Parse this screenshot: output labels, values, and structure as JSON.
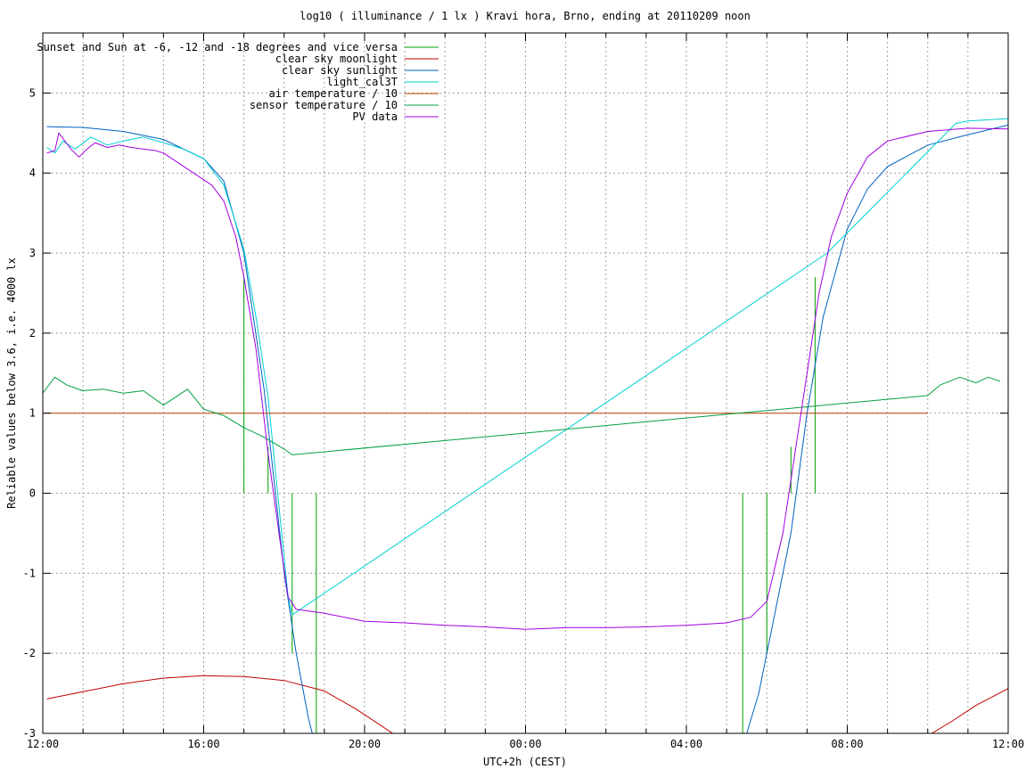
{
  "chart_data": {
    "type": "line",
    "title": "log10 ( illuminance / 1 lx ) Kravi hora, Brno, ending at 20110209 noon",
    "xlabel": "UTC+2h (CEST)",
    "ylabel": "Reliable values below 3.6, i.e. 4000 lx",
    "xlim": [
      12,
      36
    ],
    "ylim": [
      -3,
      5.75
    ],
    "x_ticks": [
      {
        "value": 12,
        "label": "12:00"
      },
      {
        "value": 16,
        "label": "16:00"
      },
      {
        "value": 20,
        "label": "20:00"
      },
      {
        "value": 24,
        "label": "00:00"
      },
      {
        "value": 28,
        "label": "04:00"
      },
      {
        "value": 32,
        "label": "08:00"
      },
      {
        "value": 36,
        "label": "12:00"
      }
    ],
    "y_ticks": [
      -3,
      -2,
      -1,
      0,
      1,
      2,
      3,
      4,
      5
    ],
    "grid": true,
    "legend_position": "top-left",
    "series": [
      {
        "name": "Sunset and Sun at -6, -12 and -18 degrees and vice versa",
        "color": "#00a000",
        "style": "impulses",
        "points": [
          [
            17.0,
            2.7
          ],
          [
            17.6,
            0.58
          ],
          [
            18.2,
            -2.0
          ],
          [
            18.8,
            -3.0
          ],
          [
            29.4,
            -3.0
          ],
          [
            30.0,
            -2.0
          ],
          [
            30.6,
            0.58
          ],
          [
            31.2,
            2.7
          ]
        ]
      },
      {
        "name": "clear sky moonlight",
        "color": "#c00000",
        "style": "line",
        "points": [
          [
            12.1,
            -2.57
          ],
          [
            13,
            -2.48
          ],
          [
            14,
            -2.38
          ],
          [
            15,
            -2.31
          ],
          [
            16,
            -2.28
          ],
          [
            17,
            -2.29
          ],
          [
            18,
            -2.34
          ],
          [
            19,
            -2.47
          ],
          [
            19.8,
            -2.7
          ],
          [
            20.7,
            -3.0
          ],
          [
            34.1,
            -3.0
          ],
          [
            34.6,
            -2.85
          ],
          [
            35.2,
            -2.65
          ],
          [
            36,
            -2.44
          ]
        ]
      },
      {
        "name": "clear sky sunlight",
        "color": "#0060c0",
        "style": "line",
        "points": [
          [
            12.1,
            4.58
          ],
          [
            13,
            4.57
          ],
          [
            14,
            4.52
          ],
          [
            15,
            4.42
          ],
          [
            16,
            4.18
          ],
          [
            16.5,
            3.9
          ],
          [
            17,
            3.0
          ],
          [
            17.5,
            1.3
          ],
          [
            18.0,
            -1.0
          ],
          [
            18.3,
            -2.0
          ],
          [
            18.6,
            -2.8
          ],
          [
            18.7,
            -3.0
          ],
          [
            29.5,
            -3.0
          ],
          [
            29.8,
            -2.5
          ],
          [
            30.2,
            -1.5
          ],
          [
            30.6,
            -0.5
          ],
          [
            31.0,
            1.0
          ],
          [
            31.4,
            2.2
          ],
          [
            32.0,
            3.3
          ],
          [
            32.5,
            3.8
          ],
          [
            33,
            4.08
          ],
          [
            34,
            4.35
          ],
          [
            35,
            4.48
          ],
          [
            36,
            4.6
          ]
        ]
      },
      {
        "name": "light_cal3T",
        "color": "#00d0d0",
        "style": "line",
        "points": [
          [
            12.1,
            4.32
          ],
          [
            12.3,
            4.25
          ],
          [
            12.5,
            4.4
          ],
          [
            12.8,
            4.3
          ],
          [
            13.2,
            4.45
          ],
          [
            13.6,
            4.35
          ],
          [
            14,
            4.4
          ],
          [
            14.5,
            4.45
          ],
          [
            15,
            4.38
          ],
          [
            15.5,
            4.3
          ],
          [
            16,
            4.18
          ],
          [
            16.5,
            3.85
          ],
          [
            17,
            3.05
          ],
          [
            17.3,
            2.2
          ],
          [
            17.6,
            1.2
          ],
          [
            17.9,
            -0.3
          ],
          [
            18.1,
            -1.3
          ],
          [
            18.2,
            -1.52
          ],
          [
            31.5,
            3.0
          ],
          [
            34.7,
            4.62
          ],
          [
            35,
            4.65
          ],
          [
            36,
            4.68
          ]
        ]
      },
      {
        "name": "air temperature / 10",
        "color": "#c04000",
        "style": "line",
        "points": [
          [
            12.0,
            1.0
          ],
          [
            34.0,
            1.0
          ]
        ]
      },
      {
        "name": "sensor temperature / 10",
        "color": "#00a040",
        "style": "line",
        "points": [
          [
            12.0,
            1.25
          ],
          [
            12.3,
            1.45
          ],
          [
            12.6,
            1.35
          ],
          [
            13,
            1.28
          ],
          [
            13.5,
            1.3
          ],
          [
            14,
            1.25
          ],
          [
            14.5,
            1.28
          ],
          [
            15,
            1.1
          ],
          [
            15.3,
            1.2
          ],
          [
            15.6,
            1.3
          ],
          [
            16,
            1.05
          ],
          [
            16.5,
            0.97
          ],
          [
            17,
            0.82
          ],
          [
            17.5,
            0.7
          ],
          [
            18.0,
            0.55
          ],
          [
            18.2,
            0.48
          ],
          [
            34.0,
            1.22
          ],
          [
            34.3,
            1.35
          ],
          [
            34.8,
            1.45
          ],
          [
            35.2,
            1.38
          ],
          [
            35.5,
            1.45
          ],
          [
            35.8,
            1.4
          ]
        ]
      },
      {
        "name": "PV data",
        "color": "#a000e0",
        "style": "line",
        "points": [
          [
            12.1,
            4.25
          ],
          [
            12.3,
            4.28
          ],
          [
            12.4,
            4.5
          ],
          [
            12.7,
            4.3
          ],
          [
            12.9,
            4.2
          ],
          [
            13.1,
            4.3
          ],
          [
            13.3,
            4.38
          ],
          [
            13.6,
            4.32
          ],
          [
            13.9,
            4.35
          ],
          [
            14.2,
            4.32
          ],
          [
            14.5,
            4.3
          ],
          [
            14.8,
            4.28
          ],
          [
            15.0,
            4.25
          ],
          [
            15.3,
            4.15
          ],
          [
            15.6,
            4.05
          ],
          [
            15.9,
            3.95
          ],
          [
            16.2,
            3.85
          ],
          [
            16.5,
            3.65
          ],
          [
            16.8,
            3.2
          ],
          [
            17.0,
            2.7
          ],
          [
            17.3,
            1.8
          ],
          [
            17.6,
            0.5
          ],
          [
            17.9,
            -0.6
          ],
          [
            18.1,
            -1.3
          ],
          [
            18.3,
            -1.45
          ],
          [
            19,
            -1.5
          ],
          [
            20,
            -1.6
          ],
          [
            21,
            -1.62
          ],
          [
            22,
            -1.65
          ],
          [
            23,
            -1.67
          ],
          [
            24,
            -1.7
          ],
          [
            25,
            -1.68
          ],
          [
            26,
            -1.68
          ],
          [
            27,
            -1.67
          ],
          [
            28,
            -1.65
          ],
          [
            29,
            -1.62
          ],
          [
            29.6,
            -1.55
          ],
          [
            30.0,
            -1.35
          ],
          [
            30.4,
            -0.5
          ],
          [
            30.7,
            0.5
          ],
          [
            31.0,
            1.5
          ],
          [
            31.3,
            2.5
          ],
          [
            31.6,
            3.2
          ],
          [
            32.0,
            3.75
          ],
          [
            32.5,
            4.2
          ],
          [
            33,
            4.4
          ],
          [
            34,
            4.52
          ],
          [
            35,
            4.56
          ],
          [
            36,
            4.55
          ]
        ]
      }
    ]
  }
}
